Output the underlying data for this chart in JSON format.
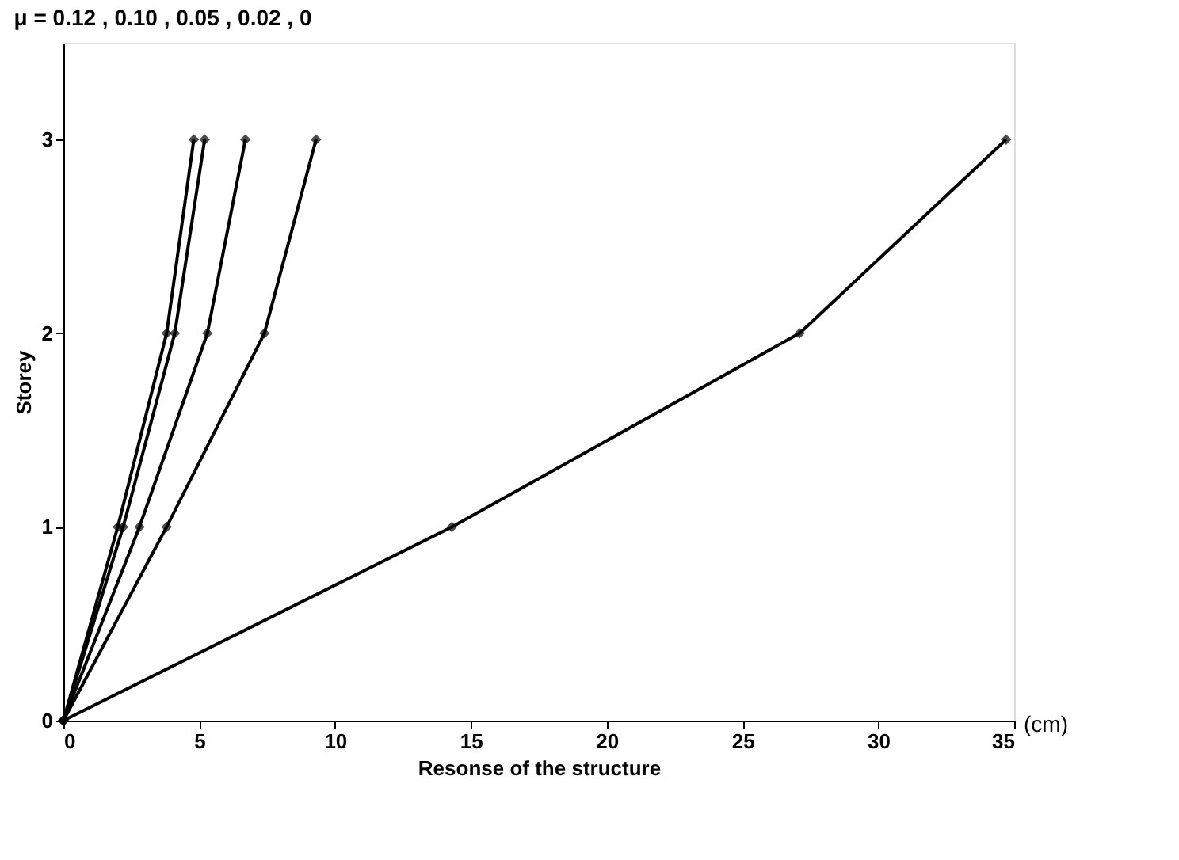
{
  "chart_data": {
    "type": "line",
    "title": "μ =  0.12 , 0.10 , 0.05 , 0.02 , 0",
    "xlabel": "Resonse of the structure",
    "ylabel": "Storey",
    "annotations": [
      "(cm)"
    ],
    "series": [
      {
        "color": "#000000",
        "x": [
          0,
          2.0,
          3.8,
          4.8
        ],
        "values": [
          0,
          1,
          2,
          3
        ]
      },
      {
        "color": "#000000",
        "x": [
          0,
          2.2,
          4.1,
          5.2
        ],
        "values": [
          0,
          1,
          2,
          3
        ]
      },
      {
        "color": "#000000",
        "x": [
          0,
          2.8,
          5.3,
          6.7
        ],
        "values": [
          0,
          1,
          2,
          3
        ]
      },
      {
        "color": "#000000",
        "x": [
          0,
          3.8,
          7.4,
          9.3
        ],
        "values": [
          0,
          1,
          2,
          3
        ]
      },
      {
        "color": "#000000",
        "x": [
          0,
          14.3,
          27.1,
          34.7
        ],
        "values": [
          0,
          1,
          2,
          3
        ]
      }
    ],
    "xlim": [
      0,
      35
    ],
    "xticks": [
      0,
      5,
      10,
      15,
      20,
      25,
      30,
      35
    ],
    "ylim": [
      0,
      3.5
    ],
    "yticks": [
      0,
      1,
      2,
      3
    ],
    "grid": false,
    "legend": false,
    "marker": "diamond",
    "line_style": "solid"
  }
}
